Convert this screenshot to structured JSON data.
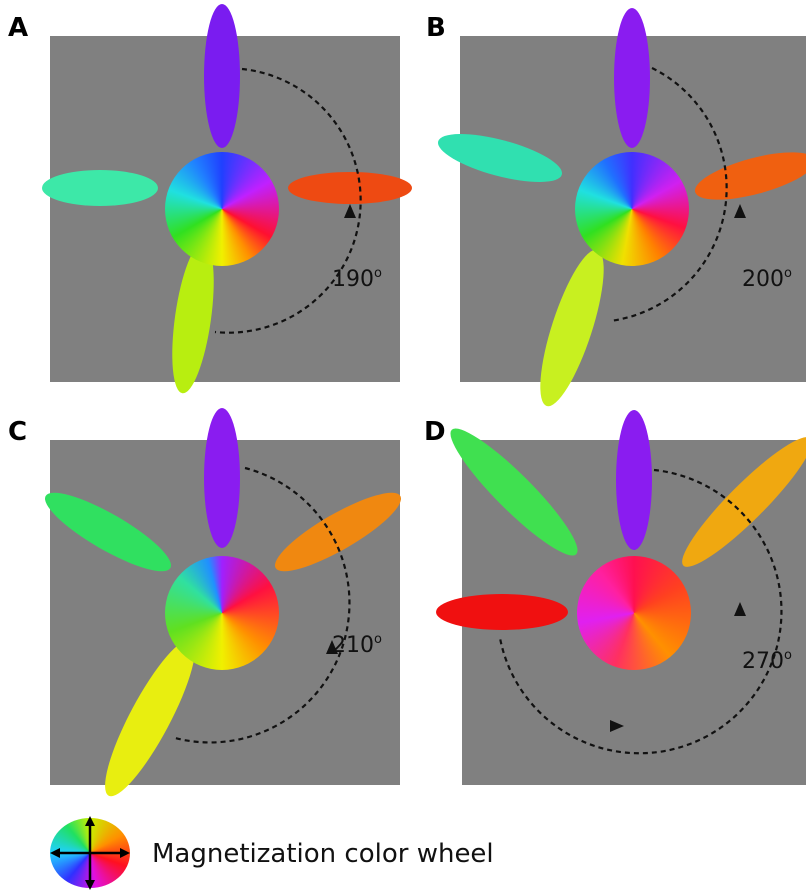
{
  "panels": [
    {
      "label": "A",
      "angle": "190",
      "unit": "o"
    },
    {
      "label": "B",
      "angle": "200",
      "unit": "o"
    },
    {
      "label": "C",
      "angle": "210",
      "unit": "o"
    },
    {
      "label": "D",
      "angle": "270",
      "unit": "o"
    }
  ],
  "legend": {
    "text": "Magnetization color wheel"
  }
}
